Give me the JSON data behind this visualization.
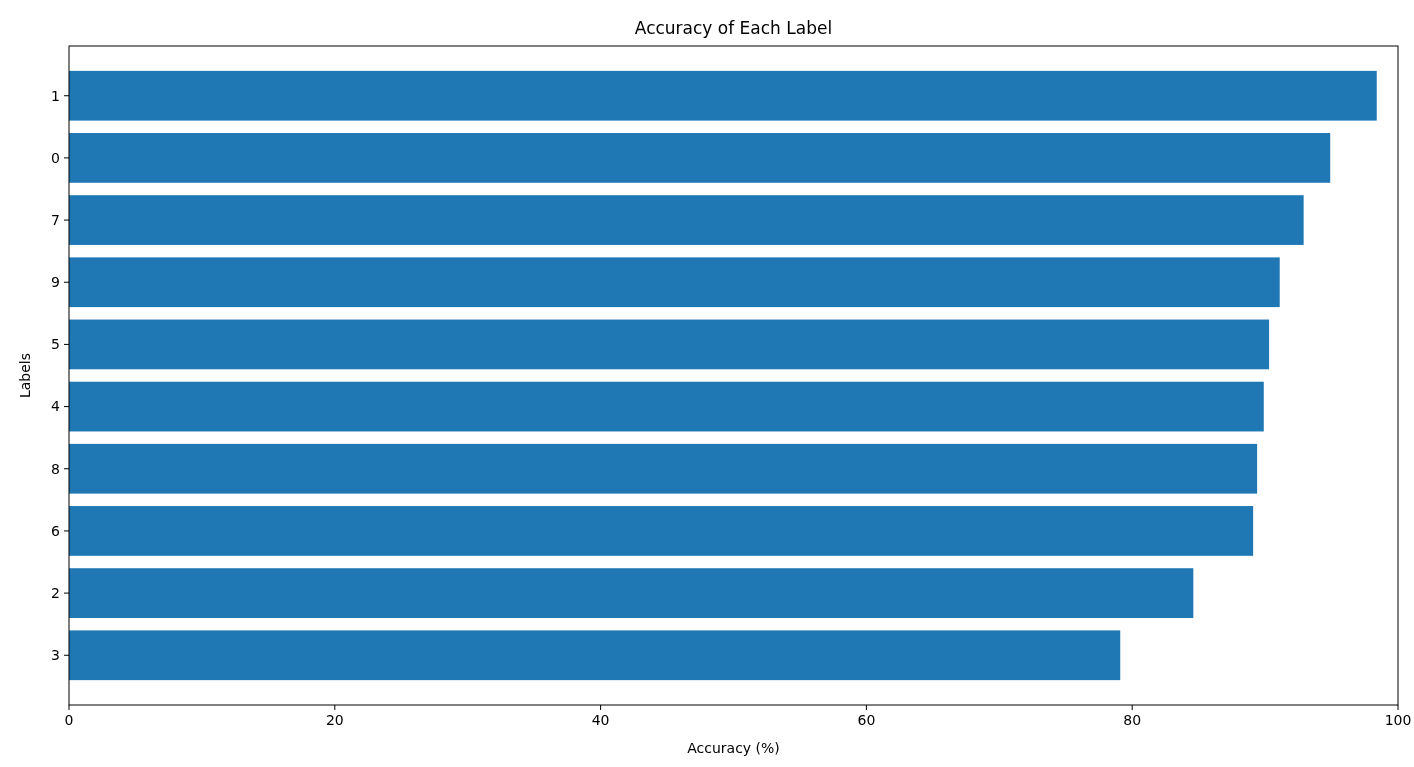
{
  "chart_data": {
    "type": "bar",
    "orientation": "horizontal",
    "title": "Accuracy of Each Label",
    "xlabel": "Accuracy (%)",
    "ylabel": "Labels",
    "categories": [
      "1",
      "0",
      "7",
      "9",
      "5",
      "4",
      "8",
      "6",
      "2",
      "3"
    ],
    "values": [
      98.4,
      94.9,
      92.9,
      91.1,
      90.3,
      89.9,
      89.4,
      89.1,
      84.6,
      79.1
    ],
    "color": "#1f77b4",
    "xlim": [
      0,
      100
    ],
    "xticks": [
      0,
      20,
      40,
      60,
      80,
      100
    ],
    "grid": false
  }
}
